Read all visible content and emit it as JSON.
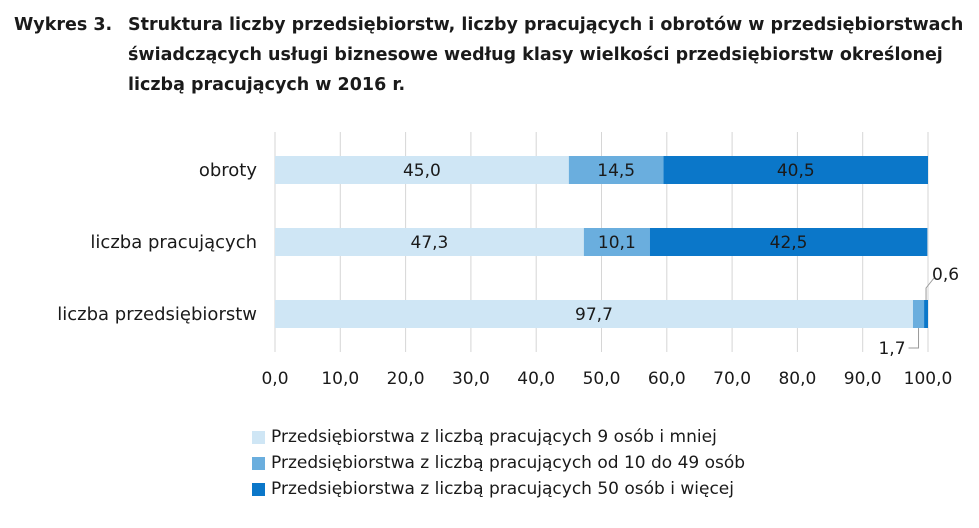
{
  "title": {
    "prefix": "Wykres 3.",
    "text": "Struktura liczby przedsiębiorstw, liczby pracujących i obrotów w przedsiębiorstwach świadczących usługi biznesowe według klasy wielkości przedsiębiorstw określonej liczbą pracujących w 2016 r."
  },
  "colors": [
    "#cfe6f5",
    "#6aaede",
    "#0b77c9"
  ],
  "chart_data": {
    "type": "bar",
    "orientation": "horizontal",
    "stacked": true,
    "categories": [
      "obroty",
      "liczba pracujących",
      "liczba przedsiębiorstw"
    ],
    "series": [
      {
        "name": "Przedsiębiorstwa z liczbą pracujących 9 osób i mniej",
        "values": [
          45.0,
          47.3,
          97.7
        ],
        "labels": [
          "45,0",
          "47,3",
          "97,7"
        ]
      },
      {
        "name": "Przedsiębiorstwa z liczbą pracujących od 10 do 49 osób",
        "values": [
          14.5,
          10.1,
          1.7
        ],
        "labels": [
          "14,5",
          "10,1",
          "1,7"
        ]
      },
      {
        "name": "Przedsiębiorstwa z liczbą pracujących 50 osób i więcej",
        "values": [
          40.5,
          42.5,
          0.6
        ],
        "labels": [
          "40,5",
          "42,5",
          "0,6"
        ]
      }
    ],
    "xlim": [
      0,
      100
    ],
    "xticks": [
      0,
      10,
      20,
      30,
      40,
      50,
      60,
      70,
      80,
      90,
      100
    ],
    "xtick_labels": [
      "0,0",
      "10,0",
      "20,0",
      "30,0",
      "40,0",
      "50,0",
      "60,0",
      "70,0",
      "80,0",
      "90,0",
      "100,0"
    ],
    "grid": true,
    "legend_position": "bottom"
  }
}
